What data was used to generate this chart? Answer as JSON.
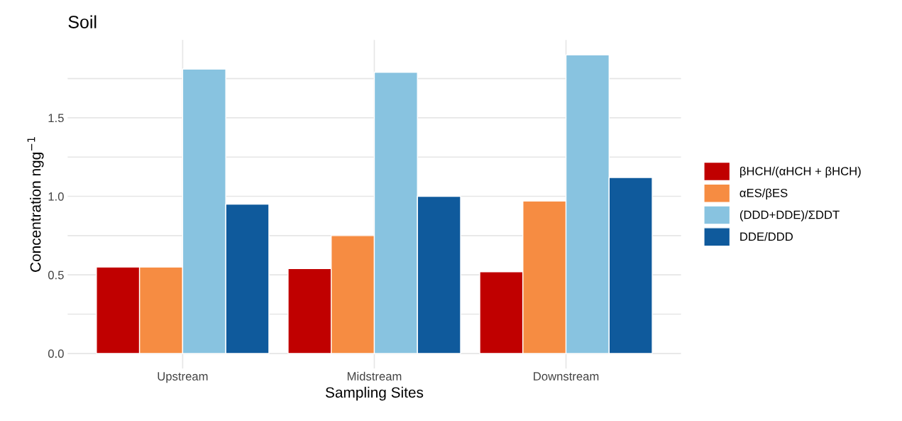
{
  "chart_data": {
    "type": "bar",
    "title": "Soil",
    "xlabel": "Sampling Sites",
    "ylabel": "Concentration ngg$^{−1}$",
    "categories": [
      "Upstream",
      "Midstream",
      "Downstream"
    ],
    "series": [
      {
        "name": "βHCH/(αHCH + βHCH)",
        "color": "#c00000",
        "values": [
          0.55,
          0.54,
          0.52
        ]
      },
      {
        "name": "αES/βES",
        "color": "#f68c42",
        "values": [
          0.55,
          0.75,
          0.97
        ]
      },
      {
        "name": "(DDD+DDE)/ΣDDT",
        "color": "#88c3e0",
        "values": [
          1.81,
          1.79,
          1.9
        ]
      },
      {
        "name": "DDE/DDD",
        "color": "#0f5a9c",
        "values": [
          0.95,
          1.0,
          1.12
        ]
      }
    ],
    "ylim": [
      -0.095,
      1.995
    ],
    "yticks": [
      {
        "value": 0,
        "label": "0.0"
      },
      {
        "value": 0.25,
        "label": null
      },
      {
        "value": 0.5,
        "label": "0.5"
      },
      {
        "value": 0.75,
        "label": null
      },
      {
        "value": 1.0,
        "label": "1.0"
      },
      {
        "value": 1.25,
        "label": null
      },
      {
        "value": 1.5,
        "label": "1.5"
      },
      {
        "value": 1.75,
        "label": null
      }
    ],
    "grid": true,
    "legend": "right"
  }
}
